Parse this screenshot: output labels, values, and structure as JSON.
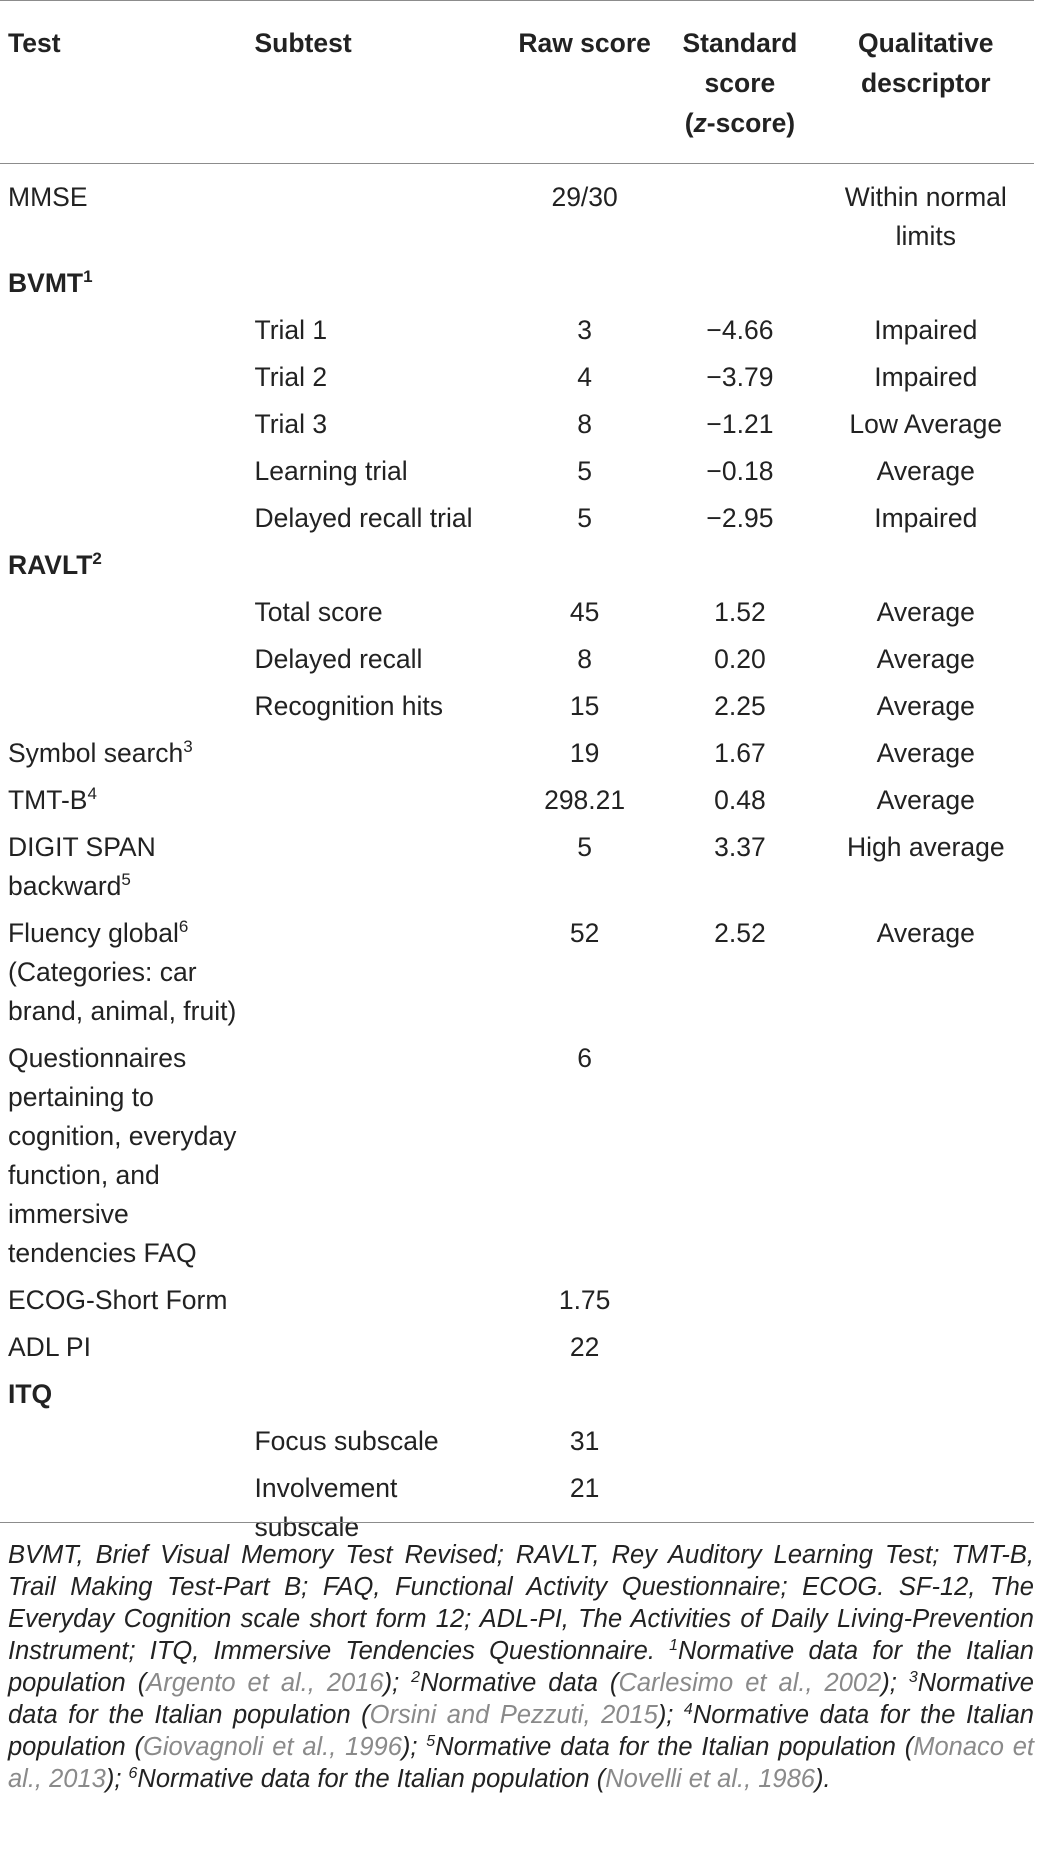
{
  "table": {
    "headers": {
      "test": "Test",
      "subtest": "Subtest",
      "raw_score": "Raw score",
      "standard_score_line1": "Standard",
      "standard_score_line2": "score",
      "standard_score_z": "z",
      "standard_score_suffix": "-score)",
      "standard_score_prefix": "(",
      "qualitative_line1": "Qualitative",
      "qualitative_line2": "descriptor"
    },
    "rows": [
      {
        "test": "MMSE",
        "sup": "",
        "subtest": "",
        "raw": "29/30",
        "z": "",
        "desc": "Within normal limits",
        "bold": false
      },
      {
        "test": "BVMT",
        "sup": "1",
        "subtest": "",
        "raw": "",
        "z": "",
        "desc": "",
        "bold": true
      },
      {
        "test": "",
        "sup": "",
        "subtest": "Trial 1",
        "raw": "3",
        "z": "−4.66",
        "desc": "Impaired",
        "bold": false
      },
      {
        "test": "",
        "sup": "",
        "subtest": "Trial 2",
        "raw": "4",
        "z": "−3.79",
        "desc": "Impaired",
        "bold": false
      },
      {
        "test": "",
        "sup": "",
        "subtest": "Trial 3",
        "raw": "8",
        "z": "−1.21",
        "desc": "Low Average",
        "bold": false
      },
      {
        "test": "",
        "sup": "",
        "subtest": "Learning trial",
        "raw": "5",
        "z": "−0.18",
        "desc": "Average",
        "bold": false
      },
      {
        "test": "",
        "sup": "",
        "subtest": "Delayed recall trial",
        "raw": "5",
        "z": "−2.95",
        "desc": "Impaired",
        "bold": false
      },
      {
        "test": "RAVLT",
        "sup": "2",
        "subtest": "",
        "raw": "",
        "z": "",
        "desc": "",
        "bold": true
      },
      {
        "test": "",
        "sup": "",
        "subtest": "Total score",
        "raw": "45",
        "z": "1.52",
        "desc": "Average",
        "bold": false
      },
      {
        "test": "",
        "sup": "",
        "subtest": "Delayed recall",
        "raw": "8",
        "z": "0.20",
        "desc": "Average",
        "bold": false
      },
      {
        "test": "",
        "sup": "",
        "subtest": "Recognition hits",
        "raw": "15",
        "z": "2.25",
        "desc": "Average",
        "bold": false
      },
      {
        "test": "Symbol search",
        "sup": "3",
        "subtest": "",
        "raw": "19",
        "z": "1.67",
        "desc": "Average",
        "bold": false
      },
      {
        "test": "TMT-B",
        "sup": "4",
        "subtest": "",
        "raw": "298.21",
        "z": "0.48",
        "desc": "Average",
        "bold": false
      },
      {
        "test": "DIGIT SPAN backward",
        "sup": "5",
        "subtest": "",
        "raw": "5",
        "z": "3.37",
        "desc": "High average",
        "bold": false
      },
      {
        "test": "Fluency global",
        "sup": "6",
        "test_extra": "(Categories: car brand, animal, fruit)",
        "subtest": "",
        "raw": "52",
        "z": "2.52",
        "desc": "Average",
        "bold": false
      },
      {
        "test": "Questionnaires pertaining to cognition, everyday function, and immersive tendencies FAQ",
        "sup": "",
        "subtest": "",
        "raw": "6",
        "z": "",
        "desc": "",
        "bold": false
      },
      {
        "test": "ECOG-Short Form",
        "sup": "",
        "subtest": "",
        "raw": "1.75",
        "z": "",
        "desc": "",
        "bold": false
      },
      {
        "test": "ADL PI",
        "sup": "",
        "subtest": "",
        "raw": "22",
        "z": "",
        "desc": "",
        "bold": false
      },
      {
        "test": "ITQ",
        "sup": "",
        "subtest": "",
        "raw": "",
        "z": "",
        "desc": "",
        "bold": true
      },
      {
        "test": "",
        "sup": "",
        "subtest": "Focus subscale",
        "raw": "31",
        "z": "",
        "desc": "",
        "bold": false
      },
      {
        "test": "",
        "sup": "",
        "subtest": "Involvement subscale",
        "raw": "21",
        "z": "",
        "desc": "",
        "bold": false
      }
    ]
  },
  "notes": {
    "segments": [
      {
        "t": "BVMT, Brief Visual Memory Test Revised; RAVLT, Rey Auditory Learning Test; TMT-B, Trail Making Test-Part B; FAQ, Functional Activity Questionnaire; ECOG. SF-12, The Everyday Cognition scale short form 12; ADL-PI, The Activities of Daily Living-Prevention Instrument; ITQ, Immersive Tendencies Questionnaire. ",
        "k": "text"
      },
      {
        "t": "1",
        "k": "sup"
      },
      {
        "t": "Normative data for the Italian population (",
        "k": "text"
      },
      {
        "t": "Argento et al., 2016",
        "k": "cite"
      },
      {
        "t": "); ",
        "k": "text"
      },
      {
        "t": "2",
        "k": "sup"
      },
      {
        "t": "Normative data (",
        "k": "text"
      },
      {
        "t": "Carlesimo et al., 2002",
        "k": "cite"
      },
      {
        "t": "); ",
        "k": "text"
      },
      {
        "t": "3",
        "k": "sup"
      },
      {
        "t": "Normative data for the Italian population (",
        "k": "text"
      },
      {
        "t": "Orsini and Pezzuti, 2015",
        "k": "cite"
      },
      {
        "t": "); ",
        "k": "text"
      },
      {
        "t": "4",
        "k": "sup"
      },
      {
        "t": "Normative data for the Italian population (",
        "k": "text"
      },
      {
        "t": "Giovagnoli et al., 1996",
        "k": "cite"
      },
      {
        "t": "); ",
        "k": "text"
      },
      {
        "t": "5",
        "k": "sup"
      },
      {
        "t": "Normative data for the Italian population (",
        "k": "text"
      },
      {
        "t": "Monaco et al., 2013",
        "k": "cite"
      },
      {
        "t": "); ",
        "k": "text"
      },
      {
        "t": "6",
        "k": "sup"
      },
      {
        "t": "Normative data for the Italian population (",
        "k": "text"
      },
      {
        "t": "Novelli et al., 1986",
        "k": "cite"
      },
      {
        "t": ").",
        "k": "text"
      }
    ]
  }
}
